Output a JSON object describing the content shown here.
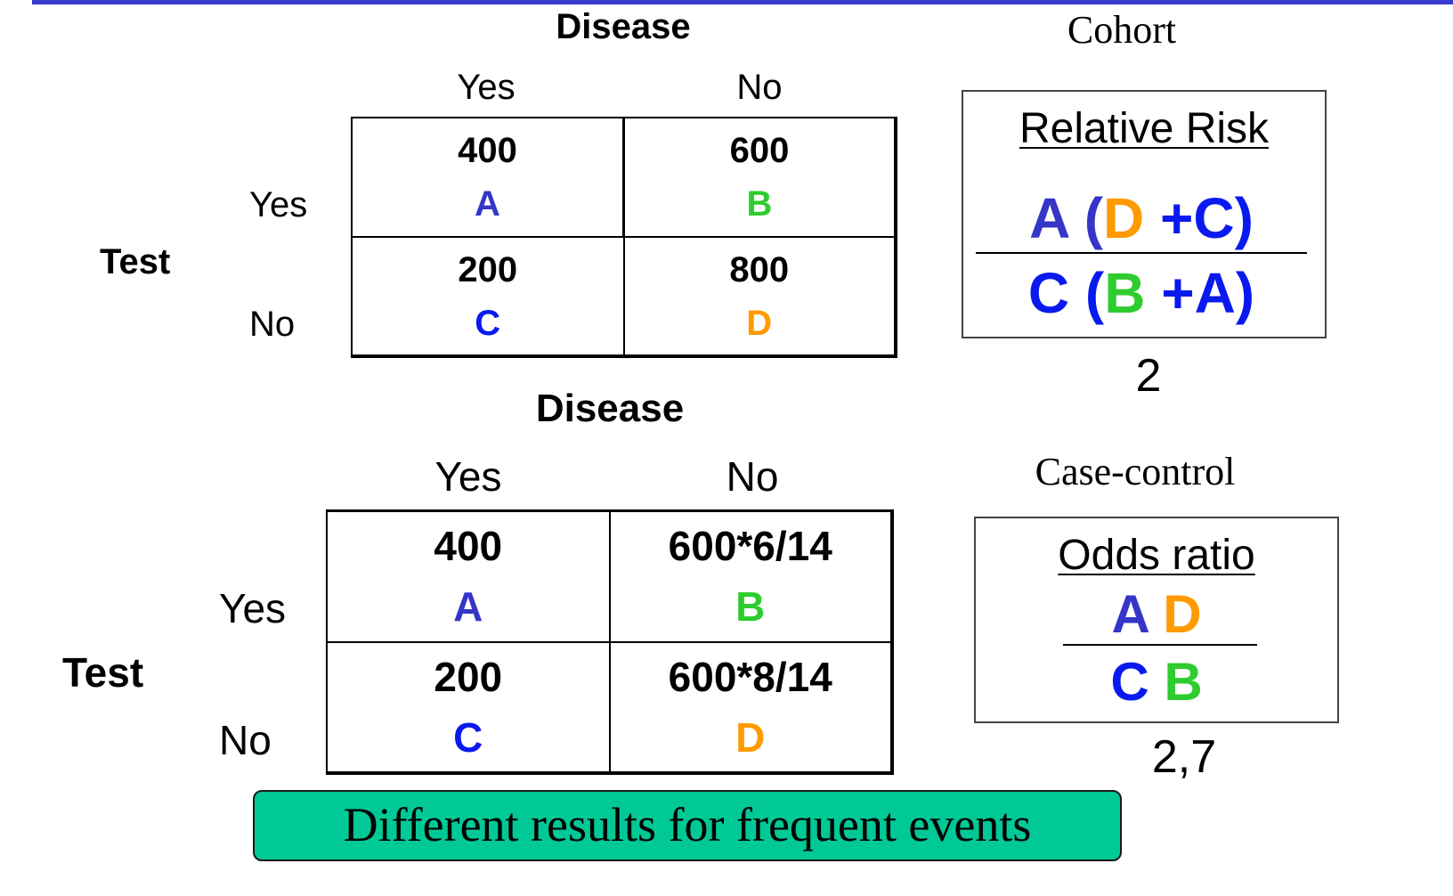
{
  "colors": {
    "A": "#3535c8",
    "B": "#2ecc2e",
    "C": "#0a1aee",
    "D": "#ff9a00",
    "banner": "#00c896",
    "topline": "#3a3ad0"
  },
  "cohort": {
    "heading": "Cohort",
    "disease_label": "Disease",
    "col_yes": "Yes",
    "col_no": "No",
    "test_label": "Test",
    "row_yes": "Yes",
    "row_no": "No",
    "cells": [
      {
        "value": "400",
        "letter": "A"
      },
      {
        "value": "600",
        "letter": "B"
      },
      {
        "value": "200",
        "letter": "C"
      },
      {
        "value": "800",
        "letter": "D"
      }
    ],
    "formula_title": "Relative Risk",
    "numerator": [
      "A",
      "(",
      "D",
      "+C",
      ")"
    ],
    "denominator": [
      "C",
      "(",
      "B",
      "+A",
      ")"
    ],
    "result": "2"
  },
  "case_control": {
    "heading": "Case-control",
    "disease_label": "Disease",
    "col_yes": "Yes",
    "col_no": "No",
    "test_label": "Test",
    "row_yes": "Yes",
    "row_no": "No",
    "cells": [
      {
        "value": "400",
        "letter": "A"
      },
      {
        "value": "600*6/14",
        "letter": "B"
      },
      {
        "value": "200",
        "letter": "C"
      },
      {
        "value": "600*8/14",
        "letter": "D"
      }
    ],
    "formula_title": "Odds ratio",
    "numerator": [
      "A",
      "D"
    ],
    "denominator": [
      "C",
      "B"
    ],
    "result": "2,7"
  },
  "banner_text": "Different results for frequent events"
}
